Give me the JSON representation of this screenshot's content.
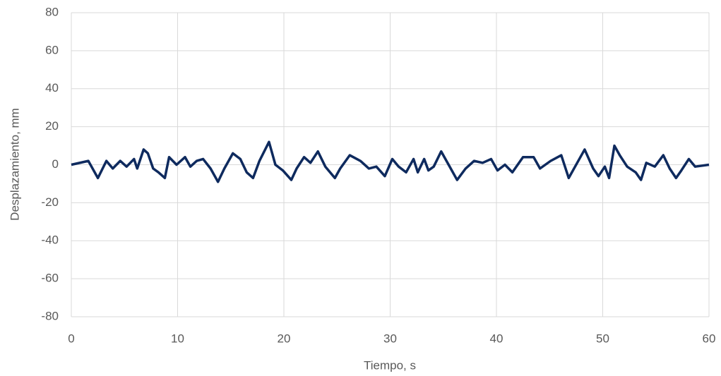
{
  "chart_data": {
    "type": "line",
    "xlabel": "Tiempo, s",
    "ylabel": "Desplazamiento, mm",
    "x": [
      0,
      1.6,
      2.5,
      3.3,
      3.9,
      4.6,
      5.2,
      5.9,
      6.2,
      6.8,
      7.2,
      7.7,
      8.2,
      8.8,
      9.2,
      9.9,
      10.7,
      11.2,
      11.8,
      12.4,
      13.1,
      13.8,
      14.4,
      15.2,
      15.9,
      16.5,
      17.1,
      17.7,
      18.6,
      19.2,
      19.9,
      20.7,
      21.2,
      21.9,
      22.5,
      23.2,
      23.9,
      24.8,
      25.3,
      26.2,
      27.2,
      28.0,
      28.7,
      29.5,
      30.2,
      30.8,
      31.5,
      32.2,
      32.6,
      33.2,
      33.6,
      34.1,
      34.8,
      35.5,
      36.3,
      37.1,
      37.9,
      38.7,
      39.5,
      40.1,
      40.8,
      41.5,
      42.5,
      43.5,
      44.1,
      45.1,
      46.1,
      46.8,
      47.4,
      48.3,
      49.1,
      49.6,
      50.2,
      50.6,
      51.1,
      51.6,
      52.3,
      53.1,
      53.6,
      54.1,
      54.9,
      55.7,
      56.3,
      56.9,
      57.4,
      58.1,
      58.7,
      60
    ],
    "series": [
      {
        "name": "Desplazamiento",
        "color": "#0e2a5e",
        "values": [
          0,
          2,
          -7,
          2,
          -2,
          2,
          -1,
          3,
          -2,
          8,
          6,
          -2,
          -4,
          -7,
          4,
          0,
          4,
          -1,
          2,
          3,
          -2,
          -9,
          -2,
          6,
          3,
          -4,
          -7,
          2,
          12,
          0,
          -3,
          -8,
          -2,
          4,
          1,
          7,
          -1,
          -7,
          -2,
          5,
          2,
          -2,
          -1,
          -6,
          3,
          -1,
          -4,
          3,
          -4,
          3,
          -3,
          -1,
          7,
          0,
          -8,
          -2,
          2,
          1,
          3,
          -3,
          0,
          -4,
          4,
          4,
          -2,
          2,
          5,
          -7,
          -1,
          8,
          -2,
          -6,
          -1,
          -7,
          10,
          5,
          -1,
          -4,
          -8,
          1,
          -1,
          5,
          -2,
          -7,
          -3,
          3,
          -1,
          0
        ]
      }
    ],
    "xlim": [
      0,
      60
    ],
    "xticks": [
      0,
      10,
      20,
      30,
      40,
      50,
      60
    ],
    "ylim": [
      -80,
      80
    ],
    "yticks": [
      -80,
      -60,
      -40,
      -20,
      0,
      20,
      40,
      60,
      80
    ],
    "grid": true
  }
}
